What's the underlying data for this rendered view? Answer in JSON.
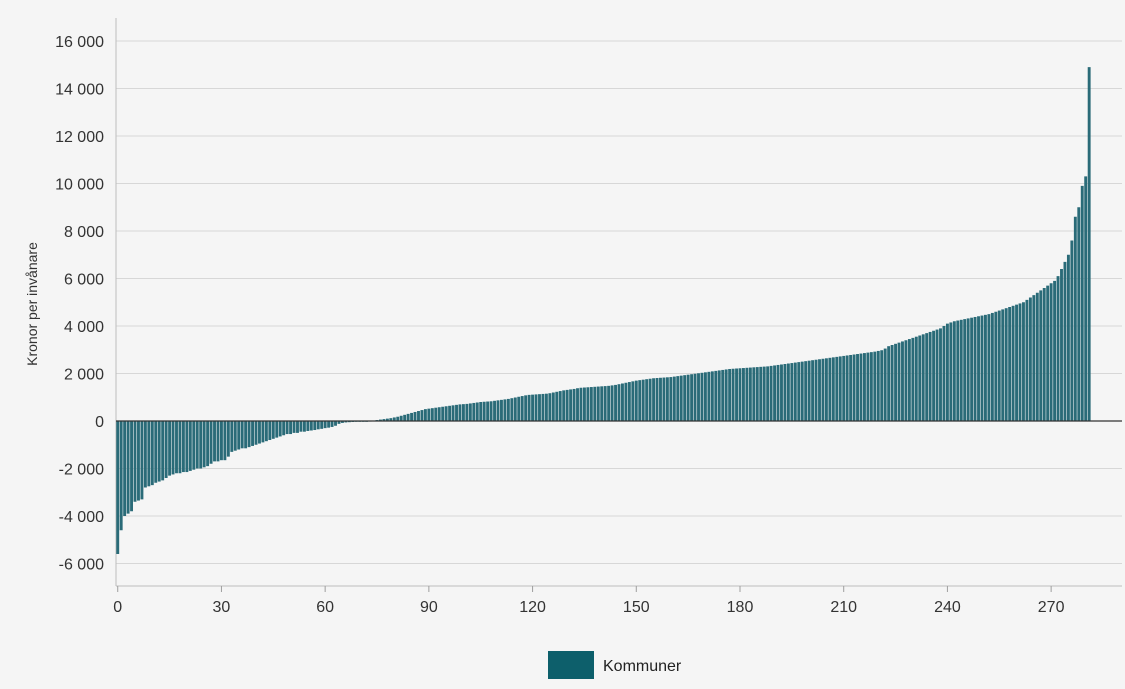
{
  "chart_data": {
    "type": "bar",
    "ylabel": "Kronor per invånare",
    "xlabel": "",
    "ylim": [
      -7000,
      17000
    ],
    "xlim": [
      -0.5,
      290.5
    ],
    "y_ticks": [
      -6000,
      -4000,
      -2000,
      0,
      2000,
      4000,
      6000,
      8000,
      10000,
      12000,
      14000,
      16000
    ],
    "y_tick_labels": [
      "-6 000",
      "-4 000",
      "-2 000",
      "0",
      "2 000",
      "4 000",
      "6 000",
      "8 000",
      "10 000",
      "12 000",
      "14 000",
      "16 000"
    ],
    "x_ticks": [
      0,
      30,
      60,
      90,
      120,
      150,
      180,
      210,
      240,
      270
    ],
    "x_tick_labels": [
      "0",
      "30",
      "60",
      "90",
      "120",
      "150",
      "180",
      "210",
      "240",
      "270"
    ],
    "grid": "horizontal",
    "legend_position": "bottom-center",
    "series": [
      {
        "name": "Kommuner",
        "color": "#2a6b78",
        "values": [
          -5600,
          -4600,
          -4000,
          -3900,
          -3800,
          -3400,
          -3350,
          -3300,
          -2800,
          -2750,
          -2700,
          -2600,
          -2550,
          -2500,
          -2400,
          -2300,
          -2250,
          -2200,
          -2200,
          -2150,
          -2150,
          -2100,
          -2050,
          -2000,
          -2000,
          -1950,
          -1900,
          -1800,
          -1700,
          -1700,
          -1650,
          -1650,
          -1500,
          -1300,
          -1250,
          -1200,
          -1150,
          -1150,
          -1100,
          -1050,
          -1000,
          -950,
          -900,
          -850,
          -800,
          -750,
          -700,
          -650,
          -600,
          -550,
          -550,
          -500,
          -500,
          -450,
          -450,
          -420,
          -400,
          -380,
          -350,
          -330,
          -300,
          -280,
          -250,
          -200,
          -120,
          -80,
          -60,
          -50,
          -40,
          -30,
          -20,
          -10,
          0,
          10,
          20,
          40,
          60,
          80,
          100,
          120,
          150,
          180,
          220,
          260,
          300,
          340,
          380,
          420,
          460,
          500,
          520,
          540,
          560,
          580,
          600,
          620,
          640,
          660,
          680,
          700,
          710,
          720,
          740,
          760,
          780,
          800,
          810,
          820,
          830,
          850,
          870,
          890,
          910,
          930,
          960,
          990,
          1020,
          1050,
          1080,
          1100,
          1110,
          1120,
          1130,
          1140,
          1150,
          1170,
          1200,
          1230,
          1260,
          1290,
          1310,
          1330,
          1350,
          1380,
          1400,
          1410,
          1420,
          1430,
          1440,
          1450,
          1460,
          1470,
          1480,
          1500,
          1520,
          1550,
          1580,
          1610,
          1640,
          1670,
          1700,
          1720,
          1740,
          1760,
          1780,
          1800,
          1810,
          1820,
          1830,
          1840,
          1850,
          1870,
          1890,
          1910,
          1930,
          1950,
          1970,
          1990,
          2010,
          2030,
          2050,
          2070,
          2090,
          2110,
          2130,
          2150,
          2170,
          2190,
          2200,
          2210,
          2220,
          2230,
          2240,
          2250,
          2260,
          2270,
          2280,
          2290,
          2300,
          2320,
          2340,
          2360,
          2380,
          2400,
          2420,
          2440,
          2460,
          2480,
          2500,
          2520,
          2540,
          2560,
          2580,
          2600,
          2620,
          2640,
          2660,
          2680,
          2700,
          2720,
          2740,
          2760,
          2780,
          2800,
          2820,
          2840,
          2860,
          2880,
          2900,
          2920,
          2950,
          2980,
          3050,
          3150,
          3200,
          3250,
          3300,
          3350,
          3400,
          3450,
          3500,
          3550,
          3600,
          3650,
          3700,
          3750,
          3800,
          3850,
          3900,
          4000,
          4100,
          4150,
          4200,
          4230,
          4260,
          4290,
          4320,
          4350,
          4380,
          4410,
          4440,
          4470,
          4500,
          4550,
          4600,
          4650,
          4700,
          4750,
          4800,
          4850,
          4900,
          4950,
          5000,
          5100,
          5200,
          5300,
          5400,
          5500,
          5600,
          5700,
          5800,
          5900,
          6100,
          6400,
          6700,
          7000,
          7600,
          8600,
          9000,
          9900,
          10300,
          14900
        ]
      }
    ]
  }
}
